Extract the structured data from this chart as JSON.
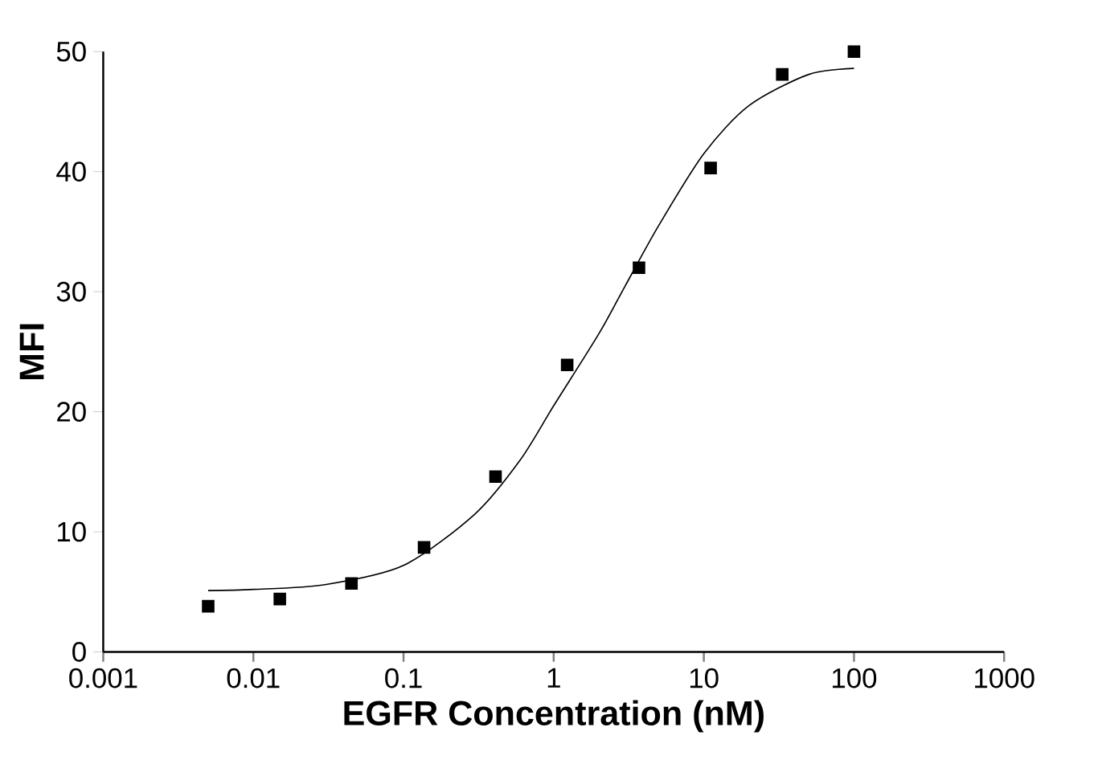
{
  "chart_data": {
    "type": "scatter",
    "xlabel": "EGFR Concentration (nM)",
    "ylabel": "MFI",
    "log": "x",
    "grid": false,
    "xlim": [
      0.001,
      1000
    ],
    "xticks": [
      0.001,
      0.01,
      0.1,
      1,
      10,
      100,
      1000
    ],
    "ylim": [
      0,
      50
    ],
    "yticks": [
      0,
      10,
      20,
      30,
      40,
      50
    ],
    "series": [
      {
        "marker": "square",
        "color": "#000000",
        "x": [
          0.005,
          0.015,
          0.045,
          0.137,
          0.41,
          1.23,
          3.7,
          11.1,
          33.3,
          100
        ],
        "values": [
          3.8,
          4.4,
          5.7,
          8.7,
          14.6,
          23.9,
          32.0,
          40.3,
          48.1,
          50.0
        ]
      },
      {
        "type": "line",
        "marker": "none",
        "line_style": "solid",
        "color": "#000000",
        "x": [
          0.005,
          0.01,
          0.03,
          0.1,
          0.3,
          0.6,
          1,
          2,
          3,
          5,
          10,
          20,
          50,
          100
        ],
        "values": [
          5.1,
          5.2,
          5.6,
          7.2,
          11.5,
          16,
          20.5,
          26.5,
          30.5,
          35.5,
          41.5,
          45.5,
          48.1,
          48.6
        ]
      }
    ]
  }
}
